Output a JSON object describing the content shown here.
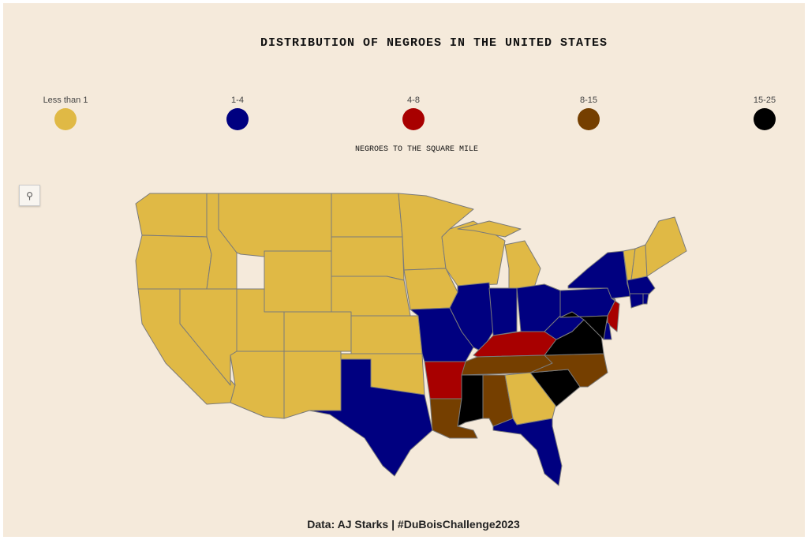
{
  "title": "DISTRIBUTION OF NEGROES IN THE UNITED STATES",
  "legend": [
    {
      "label": "Less than 1",
      "color": "#e0b945"
    },
    {
      "label": "1-4",
      "color": "#000080"
    },
    {
      "label": "4-8",
      "color": "#a80000"
    },
    {
      "label": "8-15",
      "color": "#753f00"
    },
    {
      "label": "15-25",
      "color": "#000000"
    }
  ],
  "legend_title": "NEGROES TO THE SQUARE MILE",
  "zoom_icon": "search-icon",
  "states": {
    "WA": 0,
    "OR": 0,
    "CA": 0,
    "NV": 0,
    "ID": 0,
    "MT": 0,
    "WY": 0,
    "UT": 0,
    "CO": 0,
    "AZ": 0,
    "NM": 0,
    "ND": 0,
    "SD": 0,
    "NE": 0,
    "KS": 0,
    "OK": 0,
    "MN": 0,
    "IA": 0,
    "WI": 0,
    "MI": 0,
    "GA": 0,
    "VT": 0,
    "NH": 0,
    "ME": 0,
    "TX": 1,
    "MO": 1,
    "IL": 1,
    "IN": 1,
    "OH": 1,
    "WV": 1,
    "PA": 1,
    "NY": 1,
    "DE": 1,
    "MA": 1,
    "CT": 1,
    "RI": 1,
    "FL": 1,
    "AR": 2,
    "KY": 2,
    "NJ": 2,
    "LA": 3,
    "TN": 3,
    "NC": 3,
    "AL": 3,
    "MS": 4,
    "SC": 4,
    "VA": 4,
    "MD": 4
  },
  "credit": "Data: AJ Starks | #DuBoisChallenge2023"
}
